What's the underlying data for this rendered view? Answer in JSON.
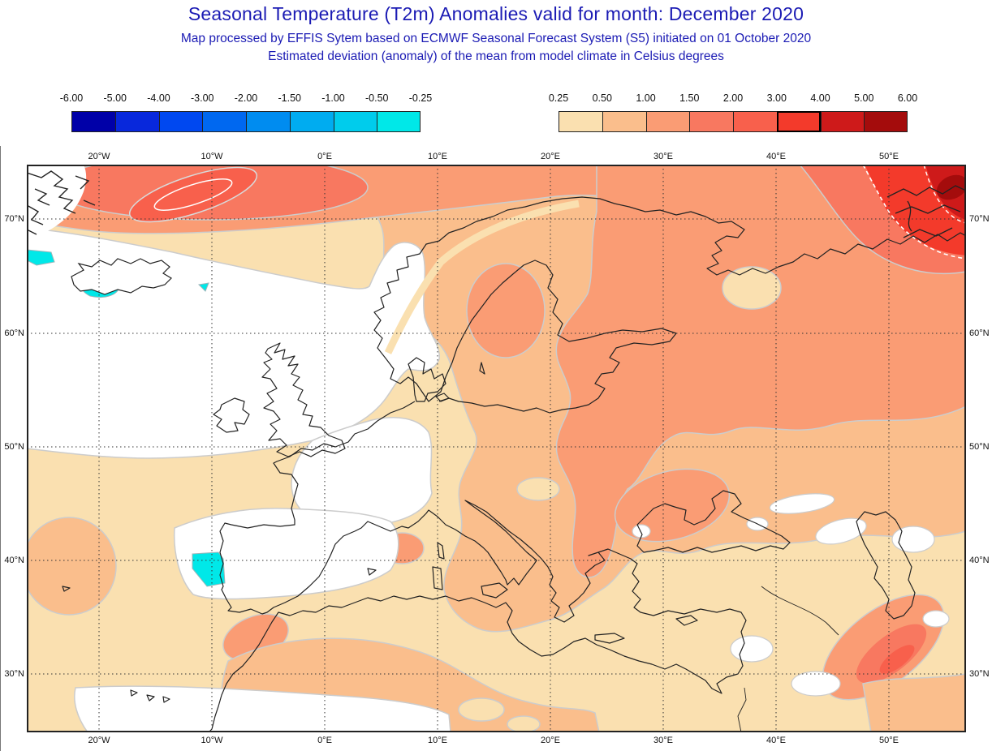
{
  "header": {
    "title": "Seasonal Temperature (T2m) Anomalies valid for month: December 2020",
    "subtitle1": "Map processed by EFFIS Sytem based on ECMWF Seasonal Forecast System (S5) initiated on 01 October 2020",
    "subtitle2": "Estimated deviation (anomaly) of the mean from model climate in Celsius degrees",
    "title_color": "#1b1bb4"
  },
  "legend": {
    "negative": {
      "labels": [
        "-6.00",
        "-5.00",
        "-4.00",
        "-3.00",
        "-2.00",
        "-1.50",
        "-1.00",
        "-0.50",
        "-0.25"
      ],
      "colors": [
        "#0000a8",
        "#0828dc",
        "#0048f0",
        "#0068f0",
        "#008cf0",
        "#00acf0",
        "#00ccec",
        "#00e8e8"
      ]
    },
    "positive": {
      "labels": [
        "0.25",
        "0.50",
        "1.00",
        "1.50",
        "2.00",
        "3.00",
        "4.00",
        "5.00",
        "6.00"
      ],
      "colors": [
        "#fae0b0",
        "#fabe8c",
        "#fa9c74",
        "#f87860",
        "#f8604c",
        "#f33a2b",
        "#ce1a1a",
        "#a40c0c"
      ]
    }
  },
  "map": {
    "lon_labels": [
      "20°W",
      "10°W",
      "0°E",
      "10°E",
      "20°E",
      "30°E",
      "40°E",
      "50°E"
    ],
    "lat_labels": [
      "70°N",
      "60°N",
      "50°N",
      "40°N",
      "30°N"
    ],
    "grid_color": "#333333",
    "coast_color": "#222222",
    "contour_gray": "#cccccc",
    "white_level": "#ffffff",
    "cool_patch": "#00e8e8"
  }
}
